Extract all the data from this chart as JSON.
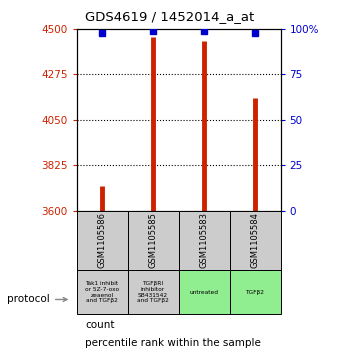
{
  "title": "GDS4619 / 1452014_a_at",
  "samples": [
    "GSM1105586",
    "GSM1105585",
    "GSM1105583",
    "GSM1105584"
  ],
  "counts": [
    3720,
    4460,
    4440,
    4160
  ],
  "percentiles": [
    98,
    99,
    99,
    98
  ],
  "protocols": [
    "Tak1 inhibit\nor 5Z-7-oxo\nzeaenol\nand TGFβ2",
    "TGFβRI\ninhibitor\nSB431542\nand TGFβ2",
    "untreated",
    "TGFβ2"
  ],
  "protocol_colors": [
    "#cccccc",
    "#cccccc",
    "#90ee90",
    "#90ee90"
  ],
  "ylim_left": [
    3600,
    4500
  ],
  "ylim_right": [
    0,
    100
  ],
  "left_ticks": [
    3600,
    3825,
    4050,
    4275,
    4500
  ],
  "right_ticks": [
    0,
    25,
    50,
    75,
    100
  ],
  "bar_color": "#cc2200",
  "dot_color": "#0000cc",
  "left_tick_color": "#cc2200",
  "right_tick_color": "#0000cc",
  "bg_color": "#ffffff",
  "plot_bg": "#ffffff",
  "sample_box_color": "#cccccc",
  "bar_width": 3.5
}
